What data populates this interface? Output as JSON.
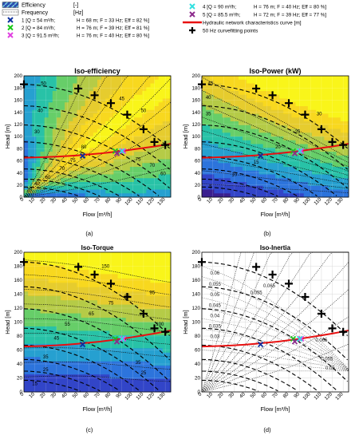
{
  "legend_left": [
    {
      "label": "Efficiency",
      "unit": "[-]",
      "style": "efficiency-swatch"
    },
    {
      "label": "Frequency",
      "unit": "[Hz]",
      "style": "frequency-swatch"
    },
    {
      "label": "1 [Q = 54 m³/h;",
      "detail": "H = 68 m;  F = 33 Hz; Eff = 82 %]",
      "color": "#0b2f9e",
      "marker": "x"
    },
    {
      "label": "2 [Q = 84 m³/h;",
      "detail": "H = 76 m;  F = 39 Hz; Eff = 81 %]",
      "color": "#18c818",
      "marker": "x"
    },
    {
      "label": "3 [Q = 91.5 m³/h;",
      "detail": "H = 76 m;  F = 40 Hz; Eff = 80 %]",
      "color": "#e040e0",
      "marker": "x"
    }
  ],
  "legend_right": [
    {
      "label": "4 [Q = 90 m³/h;",
      "detail": "H = 76 m;  F = 40 Hz; Eff = 80 %]",
      "color": "#30e0e0",
      "marker": "x"
    },
    {
      "label": "5 [Q = 85.5 m³/h;",
      "detail": "H = 72 m;  F = 39 Hz; Eff = 77 %]",
      "color": "#8c2a8c",
      "marker": "x"
    },
    {
      "label": "Hydraulic network characteristics curve [m]",
      "color": "#e81010",
      "marker": "line"
    },
    {
      "label": "50 Hz curvefitting points",
      "color": "#000000",
      "marker": "plus"
    }
  ],
  "chart_data": [
    {
      "id": "a",
      "type": "heatmap",
      "title": "Iso-efficiency",
      "caption": "(a)",
      "xlabel": "Flow [m³/h]",
      "ylabel": "Head [m]",
      "xlim": [
        0,
        135
      ],
      "ylim": [
        0,
        200
      ],
      "xticks": [
        0,
        10,
        20,
        30,
        40,
        50,
        60,
        70,
        80,
        90,
        100,
        110,
        120,
        130
      ],
      "yticks": [
        0,
        20,
        40,
        60,
        80,
        100,
        120,
        140,
        160,
        180,
        200
      ],
      "contour_labels": [
        {
          "text": "20",
          "x": 5,
          "y": 10
        },
        {
          "text": "40",
          "x": 12,
          "y": 20
        },
        {
          "text": "60",
          "x": 22,
          "y": 30
        },
        {
          "text": "70",
          "x": 35,
          "y": 45
        },
        {
          "text": "75",
          "x": 45,
          "y": 58
        },
        {
          "text": "80",
          "x": 55,
          "y": 80
        },
        {
          "text": "80",
          "x": 88,
          "y": 72
        },
        {
          "text": "75",
          "x": 105,
          "y": 60
        },
        {
          "text": "70",
          "x": 118,
          "y": 50
        },
        {
          "text": "60",
          "x": 128,
          "y": 36
        },
        {
          "text": "30",
          "x": 12,
          "y": 105
        },
        {
          "text": "40",
          "x": 15,
          "y": 140
        },
        {
          "text": "50",
          "x": 18,
          "y": 185
        },
        {
          "text": "45",
          "x": 90,
          "y": 160
        },
        {
          "text": "50",
          "x": 110,
          "y": 140
        }
      ]
    },
    {
      "id": "b",
      "type": "heatmap",
      "title": "Iso-Power (kW)",
      "caption": "(b)",
      "xlabel": "Flow [m³/h]",
      "ylabel": "Head [m]",
      "xlim": [
        0,
        135
      ],
      "ylim": [
        0,
        200
      ],
      "xticks": [
        0,
        10,
        20,
        30,
        40,
        50,
        60,
        70,
        80,
        90,
        100,
        110,
        120,
        130
      ],
      "yticks": [
        0,
        20,
        40,
        60,
        80,
        100,
        120,
        140,
        160,
        180,
        200
      ],
      "contour_labels": [
        {
          "text": "5",
          "x": 8,
          "y": 15
        },
        {
          "text": "10",
          "x": 30,
          "y": 35
        },
        {
          "text": "15",
          "x": 50,
          "y": 55
        },
        {
          "text": "20",
          "x": 70,
          "y": 80
        },
        {
          "text": "25",
          "x": 88,
          "y": 105
        },
        {
          "text": "30",
          "x": 108,
          "y": 135
        },
        {
          "text": "35",
          "x": 6,
          "y": 135
        },
        {
          "text": "40",
          "x": 6,
          "y": 162
        },
        {
          "text": "45",
          "x": 8,
          "y": 185
        }
      ]
    },
    {
      "id": "c",
      "type": "heatmap",
      "title": "Iso-Torque",
      "caption": "(c)",
      "xlabel": "Flow [m³/h]",
      "ylabel": "Head [m]",
      "xlim": [
        0,
        135
      ],
      "ylim": [
        0,
        200
      ],
      "xticks": [
        0,
        10,
        20,
        30,
        40,
        50,
        60,
        70,
        80,
        90,
        100,
        110,
        120,
        130
      ],
      "yticks": [
        0,
        20,
        40,
        60,
        80,
        100,
        120,
        140,
        160,
        180,
        200
      ],
      "contour_labels": [
        {
          "text": "15",
          "x": 10,
          "y": 10
        },
        {
          "text": "25",
          "x": 20,
          "y": 30
        },
        {
          "text": "35",
          "x": 20,
          "y": 48
        },
        {
          "text": "45",
          "x": 30,
          "y": 75
        },
        {
          "text": "55",
          "x": 40,
          "y": 95
        },
        {
          "text": "65",
          "x": 62,
          "y": 110
        },
        {
          "text": "75",
          "x": 80,
          "y": 125
        },
        {
          "text": "85",
          "x": 95,
          "y": 135
        },
        {
          "text": "95",
          "x": 118,
          "y": 140
        },
        {
          "text": "150",
          "x": 75,
          "y": 178
        },
        {
          "text": "100",
          "x": 125,
          "y": 95
        },
        {
          "text": "35",
          "x": 105,
          "y": 40
        },
        {
          "text": "25",
          "x": 110,
          "y": 25
        }
      ]
    },
    {
      "id": "d",
      "type": "heatmap",
      "title": "Iso-Inertia",
      "caption": "(d)",
      "xlabel": "Flow [m³/h]",
      "ylabel": "Head [m]",
      "xlim": [
        0,
        135
      ],
      "ylim": [
        0,
        200
      ],
      "xticks": [
        0,
        10,
        20,
        30,
        40,
        50,
        60,
        70,
        80,
        90,
        100,
        110,
        120,
        130
      ],
      "yticks": [
        0,
        20,
        40,
        60,
        80,
        100,
        120,
        140,
        160,
        180,
        200
      ],
      "contour_labels": [
        {
          "text": "0.065",
          "x": 62,
          "y": 150
        },
        {
          "text": "0.055",
          "x": 50,
          "y": 140
        },
        {
          "text": "0.06",
          "x": 12,
          "y": 168
        },
        {
          "text": "0.055",
          "x": 12,
          "y": 152
        },
        {
          "text": "0.05",
          "x": 12,
          "y": 137
        },
        {
          "text": "0.045",
          "x": 12,
          "y": 122
        },
        {
          "text": "0.04",
          "x": 12,
          "y": 107
        },
        {
          "text": "0.035",
          "x": 12,
          "y": 92
        },
        {
          "text": "0.03",
          "x": 12,
          "y": 77
        },
        {
          "text": "0.065",
          "x": 110,
          "y": 72
        },
        {
          "text": "0.055",
          "x": 115,
          "y": 45
        },
        {
          "text": "0.05",
          "x": 118,
          "y": 32
        }
      ]
    }
  ],
  "shared_series": {
    "network_curve": {
      "name": "Hydraulic network characteristics curve [m]",
      "color": "#e81010",
      "x": [
        0,
        10,
        20,
        30,
        40,
        50,
        60,
        70,
        80,
        90,
        100,
        110,
        120,
        130,
        135
      ],
      "y": [
        65,
        65.5,
        66,
        66.8,
        67.8,
        69,
        70.5,
        72,
        74,
        76,
        78.5,
        81,
        83.5,
        86.5,
        88
      ]
    },
    "fit_50hz": {
      "name": "50 Hz curvefitting points",
      "color": "#000000",
      "x": [
        0,
        50,
        65,
        80,
        95,
        110,
        120,
        130
      ],
      "y": [
        186,
        179,
        168,
        155,
        136,
        112,
        91,
        86
      ]
    },
    "operating_points": [
      {
        "id": "1",
        "x": 54,
        "y": 68,
        "color": "#0b2f9e"
      },
      {
        "id": "2",
        "x": 84,
        "y": 76,
        "color": "#18c818"
      },
      {
        "id": "3",
        "x": 91.5,
        "y": 76,
        "color": "#e040e0"
      },
      {
        "id": "4",
        "x": 90,
        "y": 76,
        "color": "#30e0e0"
      },
      {
        "id": "5",
        "x": 85.5,
        "y": 72,
        "color": "#8c2a8c"
      }
    ]
  }
}
